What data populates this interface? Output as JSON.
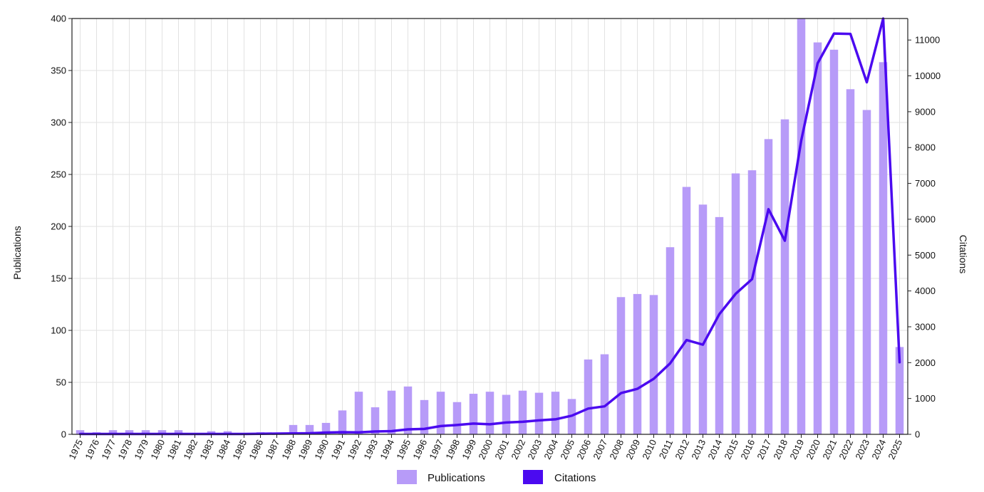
{
  "chart_data": {
    "type": "bar",
    "categories": [
      "1975",
      "1976",
      "1977",
      "1978",
      "1979",
      "1980",
      "1981",
      "1982",
      "1983",
      "1984",
      "1985",
      "1986",
      "1987",
      "1988",
      "1989",
      "1990",
      "1991",
      "1992",
      "1993",
      "1994",
      "1995",
      "1996",
      "1997",
      "1998",
      "1999",
      "2000",
      "2001",
      "2002",
      "2003",
      "2004",
      "2005",
      "2006",
      "2007",
      "2008",
      "2009",
      "2010",
      "2011",
      "2012",
      "2013",
      "2014",
      "2015",
      "2016",
      "2017",
      "2018",
      "2019",
      "2020",
      "2021",
      "2022",
      "2023",
      "2024",
      "2025"
    ],
    "series": [
      {
        "name": "Publications",
        "type": "bar",
        "axis": "left",
        "color": "#B79BF8",
        "values": [
          4,
          2,
          4,
          4,
          4,
          4,
          4,
          1,
          3,
          3,
          1,
          2,
          1,
          9,
          9,
          11,
          23,
          41,
          26,
          42,
          46,
          33,
          41,
          31,
          39,
          41,
          38,
          42,
          40,
          41,
          34,
          72,
          77,
          132,
          135,
          134,
          180,
          238,
          221,
          209,
          251,
          254,
          284,
          303,
          403,
          377,
          370,
          332,
          312,
          358,
          84
        ]
      },
      {
        "name": "Citations",
        "type": "line",
        "axis": "right",
        "color": "#4B0AF0",
        "values": [
          10,
          10,
          10,
          10,
          10,
          10,
          10,
          10,
          10,
          10,
          10,
          15,
          20,
          25,
          30,
          50,
          60,
          55,
          80,
          90,
          140,
          150,
          230,
          260,
          300,
          280,
          330,
          350,
          390,
          420,
          520,
          720,
          780,
          1150,
          1270,
          1550,
          1980,
          2630,
          2500,
          3350,
          3920,
          4330,
          6280,
          5400,
          8200,
          10350,
          11180,
          11170,
          9820,
          11700,
          2010
        ]
      }
    ],
    "ylabel": "Publications",
    "y2label": "Citations",
    "ylim": [
      0,
      400
    ],
    "y2lim": [
      0,
      11600
    ],
    "yticks": [
      0,
      50,
      100,
      150,
      200,
      250,
      300,
      350,
      400
    ],
    "y2ticks": [
      0,
      1000,
      2000,
      3000,
      4000,
      5000,
      6000,
      7000,
      8000,
      9000,
      10000,
      11000
    ],
    "grid": true,
    "legend_placement": "bottom-center"
  }
}
